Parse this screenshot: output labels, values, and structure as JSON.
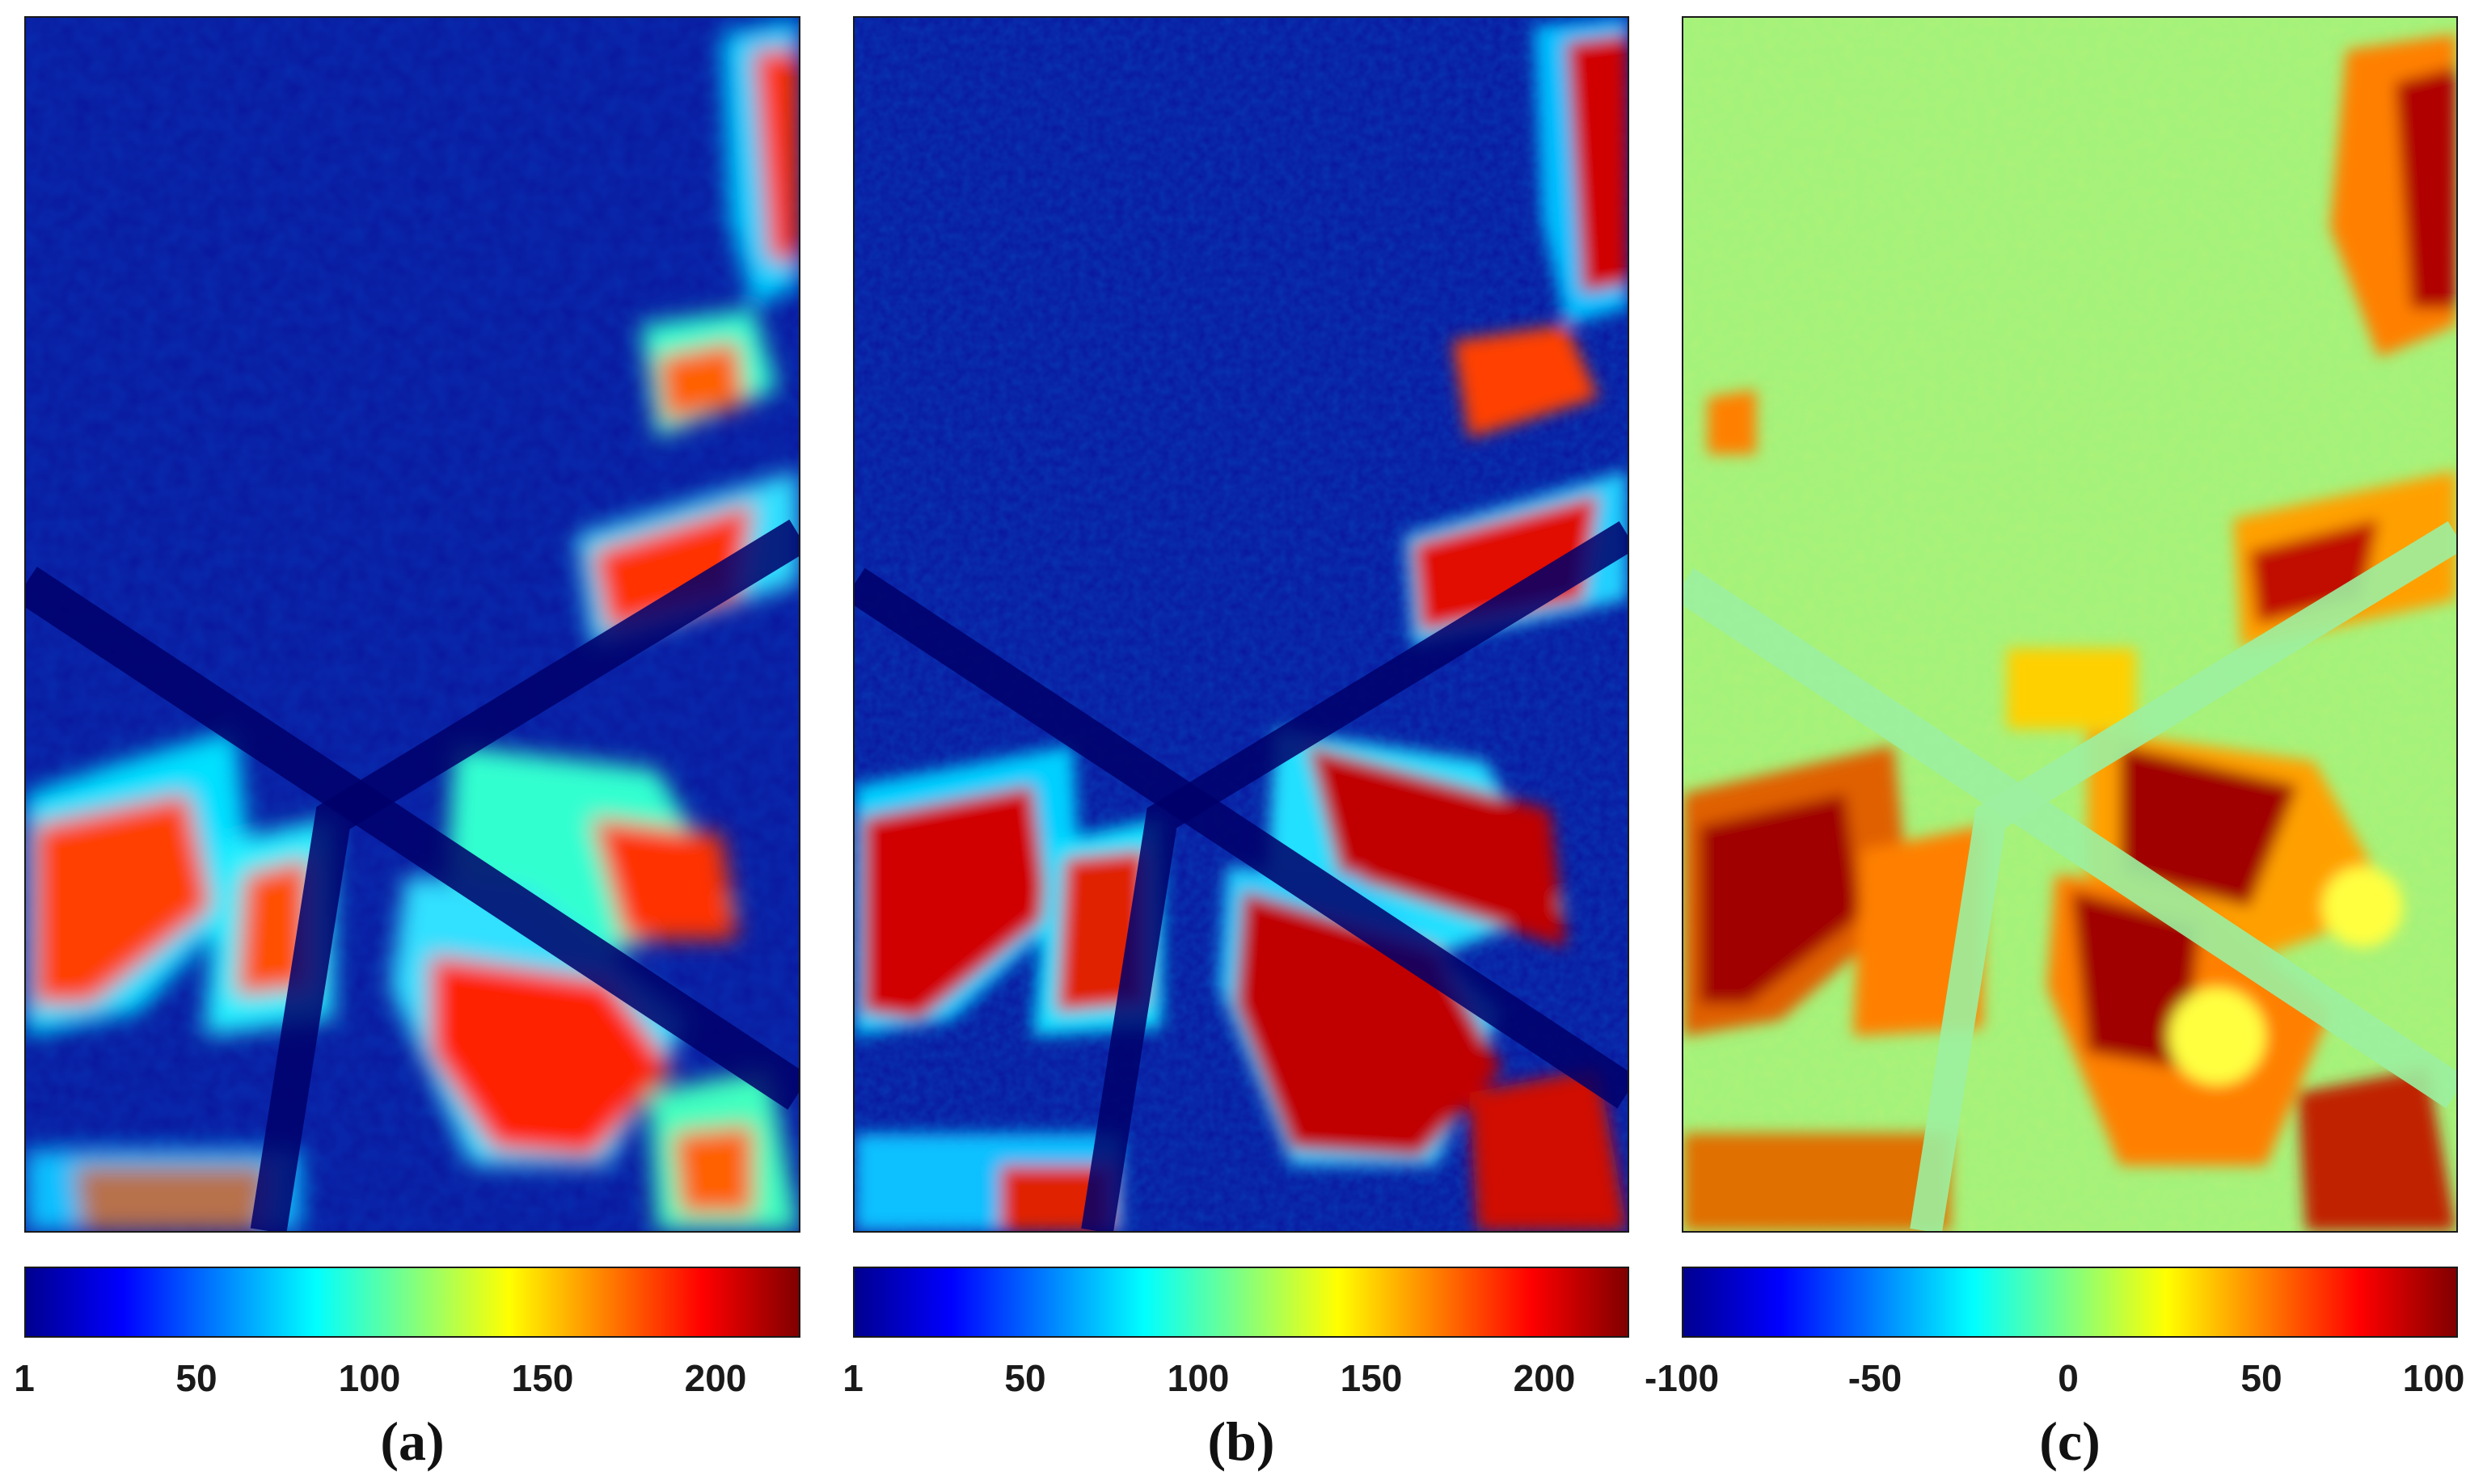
{
  "colors": {
    "jet": [
      "#00008f",
      "#0000ff",
      "#0080ff",
      "#00ffff",
      "#80ff80",
      "#ffff00",
      "#ff8000",
      "#ff0000",
      "#800000"
    ],
    "frame": "#1a1a1a"
  },
  "panels": [
    {
      "label": "(a)",
      "background": "low",
      "colorbar_ticks": [
        "1",
        "50",
        "100",
        "150",
        "200"
      ],
      "colorbar_range": [
        1,
        225
      ]
    },
    {
      "label": "(b)",
      "background": "low",
      "colorbar_ticks": [
        "1",
        "50",
        "100",
        "150",
        "200"
      ],
      "colorbar_range": [
        1,
        225
      ]
    },
    {
      "label": "(c)",
      "background": "middle",
      "colorbar_ticks": [
        "-100",
        "-50",
        "0",
        "50",
        "100"
      ],
      "colorbar_range": [
        -100,
        100
      ]
    }
  ]
}
